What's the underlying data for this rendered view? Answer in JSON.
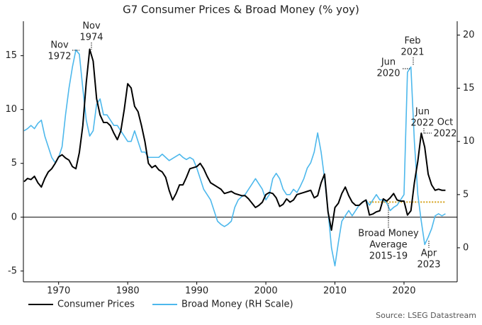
{
  "chart_data": {
    "type": "line",
    "title": "G7 Consumer Prices & Broad Money (% yoy)",
    "source": "Source: LSEG Datastream",
    "x": [
      1965,
      1965.5,
      1966,
      1966.5,
      1967,
      1967.5,
      1968,
      1968.5,
      1969,
      1969.5,
      1970,
      1970.5,
      1971,
      1971.5,
      1972,
      1972.5,
      1973,
      1973.5,
      1974,
      1974.5,
      1975,
      1975.5,
      1976,
      1976.5,
      1977,
      1977.5,
      1978,
      1978.5,
      1979,
      1979.5,
      1980,
      1980.5,
      1981,
      1981.5,
      1982,
      1982.5,
      1983,
      1983.5,
      1984,
      1984.5,
      1985,
      1985.5,
      1986,
      1986.5,
      1987,
      1987.5,
      1988,
      1988.5,
      1989,
      1989.5,
      1990,
      1990.5,
      1991,
      1991.5,
      1992,
      1992.5,
      1993,
      1993.5,
      1994,
      1994.5,
      1995,
      1995.5,
      1996,
      1996.5,
      1997,
      1997.5,
      1998,
      1998.5,
      1999,
      1999.5,
      2000,
      2000.5,
      2001,
      2001.5,
      2002,
      2002.5,
      2003,
      2003.5,
      2004,
      2004.5,
      2005,
      2005.5,
      2006,
      2006.5,
      2007,
      2007.5,
      2008,
      2008.5,
      2009,
      2009.5,
      2010,
      2010.5,
      2011,
      2011.5,
      2012,
      2012.5,
      2013,
      2013.5,
      2014,
      2014.5,
      2015,
      2015.5,
      2016,
      2016.5,
      2017,
      2017.5,
      2018,
      2018.5,
      2019,
      2019.5,
      2020,
      2020.5,
      2021,
      2021.5,
      2022,
      2022.5,
      2023,
      2023.5,
      2024,
      2024.5,
      2025,
      2025.5,
      2026
    ],
    "series": [
      {
        "name": "Consumer Prices",
        "color": "#000000",
        "axis": "y",
        "values": [
          3.3,
          3.6,
          3.5,
          3.8,
          3.2,
          2.8,
          3.6,
          4.2,
          4.5,
          5.0,
          5.6,
          5.8,
          5.5,
          5.3,
          4.7,
          4.5,
          6.0,
          8.5,
          12.5,
          15.6,
          14.5,
          11.0,
          9.5,
          8.8,
          8.8,
          8.5,
          7.8,
          7.2,
          8.0,
          10.0,
          12.4,
          12.0,
          10.3,
          9.8,
          8.5,
          7.0,
          5.0,
          4.6,
          4.8,
          4.4,
          4.2,
          3.7,
          2.5,
          1.6,
          2.2,
          3.0,
          3.0,
          3.7,
          4.5,
          4.6,
          4.7,
          5.0,
          4.5,
          3.8,
          3.2,
          3.0,
          2.8,
          2.6,
          2.2,
          2.3,
          2.4,
          2.2,
          2.1,
          2.0,
          2.0,
          1.7,
          1.3,
          0.9,
          1.1,
          1.4,
          2.1,
          2.3,
          2.2,
          1.8,
          1.0,
          1.2,
          1.7,
          1.4,
          1.6,
          2.1,
          2.2,
          2.3,
          2.4,
          2.5,
          1.8,
          2.0,
          3.2,
          4.0,
          0.5,
          -1.2,
          0.9,
          1.3,
          2.2,
          2.8,
          2.0,
          1.4,
          1.1,
          1.1,
          1.4,
          1.6,
          0.2,
          0.3,
          0.5,
          0.6,
          1.7,
          1.5,
          1.8,
          2.2,
          1.6,
          1.5,
          1.5,
          0.2,
          0.6,
          3.2,
          5.2,
          7.8,
          6.5,
          4.0,
          3.0,
          2.5,
          2.6,
          2.5,
          2.5
        ]
      },
      {
        "name": "Broad Money (RH Scale)",
        "color": "#4db8ec",
        "axis": "y2",
        "values": [
          11,
          11.2,
          11.5,
          11.2,
          11.7,
          12,
          10.5,
          9.5,
          8.5,
          8.0,
          8.5,
          9.5,
          12.5,
          15.0,
          17.0,
          18.6,
          18.2,
          15.0,
          12.0,
          10.5,
          11.0,
          13.5,
          14.0,
          12.5,
          12.5,
          12.0,
          11.5,
          11.5,
          11.0,
          10.5,
          10.0,
          10.0,
          11.0,
          10.0,
          9.0,
          9.0,
          8.5,
          8.5,
          8.5,
          8.5,
          8.8,
          8.5,
          8.2,
          8.4,
          8.6,
          8.8,
          8.5,
          8.3,
          8.5,
          8.3,
          7.5,
          6.5,
          5.5,
          5.0,
          4.5,
          3.5,
          2.5,
          2.2,
          2.0,
          2.2,
          2.5,
          3.8,
          4.5,
          4.8,
          5.0,
          5.5,
          6.0,
          6.5,
          6.0,
          5.5,
          4.5,
          5.0,
          6.5,
          7.0,
          6.5,
          5.5,
          5.0,
          5.0,
          5.5,
          5.2,
          5.8,
          6.5,
          7.5,
          8.0,
          9.0,
          10.8,
          9.0,
          6.5,
          3.5,
          0.0,
          -1.7,
          0.5,
          2.5,
          3.0,
          3.5,
          3.0,
          3.5,
          4.0,
          4.3,
          4.5,
          4.0,
          4.5,
          5.0,
          4.5,
          4.5,
          4.2,
          3.5,
          3.8,
          4.0,
          4.5,
          5.0,
          16.5,
          17.0,
          10.0,
          5.0,
          2.5,
          0.3,
          1.0,
          1.8,
          3.0,
          3.2,
          3.0,
          3.2
        ]
      }
    ],
    "reference_line": {
      "value": 4.3,
      "axis": "y2",
      "x": [
        2015,
        2026
      ],
      "color": "#d4a017"
    },
    "xlim": [
      1964.9,
      2027.7
    ],
    "xticks": [
      1970,
      1980,
      1990,
      2000,
      2010,
      2020
    ],
    "ylim": [
      -6,
      18.2
    ],
    "yticks": [
      -5,
      0,
      5,
      10,
      15
    ],
    "y2lim": [
      -3.2,
      21.3
    ],
    "y2ticks": [
      0,
      5,
      10,
      15,
      20
    ],
    "annotations": [
      [
        "Nov",
        "1972"
      ],
      [
        "Nov",
        "1974"
      ],
      [
        "Jun",
        "2020"
      ],
      [
        "Feb",
        "2021"
      ],
      [
        "Jun",
        "2022"
      ],
      [
        "Oct",
        "2022"
      ],
      [
        "Broad Money",
        "Average",
        "2015-19"
      ],
      [
        "Apr",
        "2023"
      ]
    ]
  }
}
